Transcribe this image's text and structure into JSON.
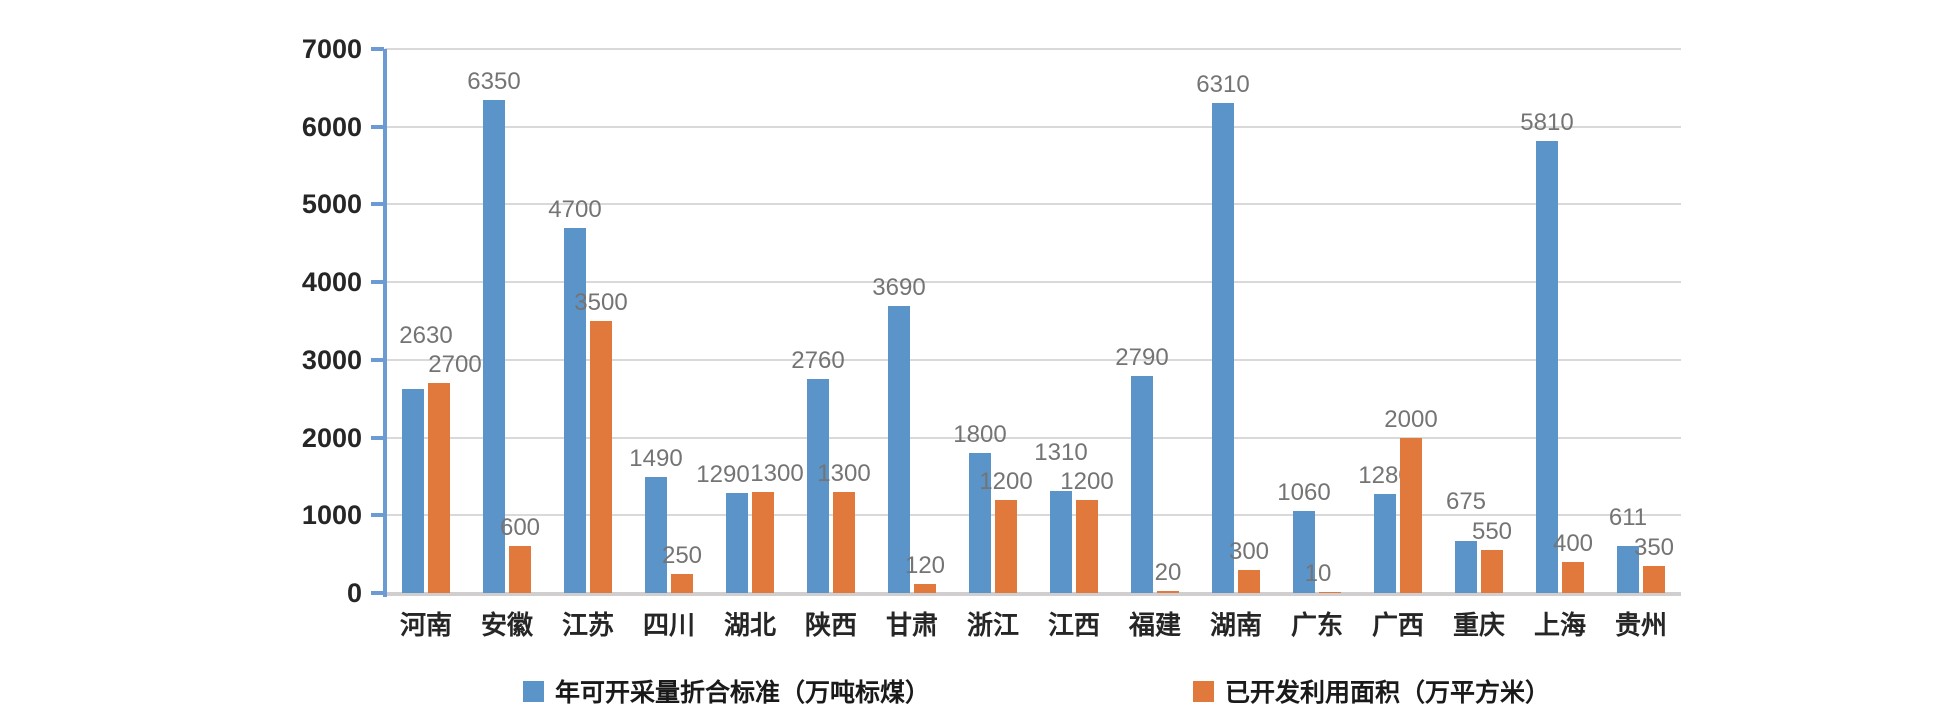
{
  "chart_data": {
    "type": "bar",
    "title": "",
    "xlabel": "",
    "ylabel": "",
    "categories": [
      "河南",
      "安徽",
      "江苏",
      "四川",
      "湖北",
      "陕西",
      "甘肃",
      "浙江",
      "江西",
      "福建",
      "湖南",
      "广东",
      "广西",
      "重庆",
      "上海",
      "贵州"
    ],
    "series": [
      {
        "name": "年可开采量折合标准（万吨标煤）",
        "color": "#5B94C8",
        "values": [
          2630,
          6350,
          4700,
          1490,
          1290,
          2760,
          3690,
          1800,
          1310,
          2790,
          6310,
          1060,
          1280,
          675,
          5810,
          611
        ],
        "label_dx": [
          13,
          0,
          0,
          0,
          -14,
          0,
          0,
          0,
          0,
          0,
          0,
          0,
          0,
          0,
          0,
          0
        ],
        "label_dy": [
          -35,
          0,
          0,
          0,
          0,
          0,
          0,
          0,
          -20,
          0,
          0,
          0,
          0,
          -21,
          0,
          -10
        ]
      },
      {
        "name": "已开发利用面积（万平方米）",
        "color": "#E2793C",
        "values": [
          2700,
          600,
          3500,
          250,
          1300,
          1300,
          120,
          1200,
          1200,
          20,
          300,
          10,
          2000,
          550,
          400,
          350
        ],
        "label_dx": [
          16,
          0,
          0,
          0,
          14,
          0,
          0,
          0,
          0,
          0,
          0,
          -12,
          0,
          0,
          0,
          0
        ],
        "label_dy": [
          0,
          0,
          0,
          0,
          0,
          0,
          0,
          0,
          0,
          0,
          0,
          0,
          0,
          0,
          0,
          0
        ]
      }
    ],
    "ylim": [
      0,
      7000
    ],
    "ytick_step": 1000,
    "yticks": [
      0,
      1000,
      2000,
      3000,
      4000,
      5000,
      6000,
      7000
    ],
    "grid": true,
    "legend_position": "bottom",
    "colors": {
      "gridline": "#D9D9D9",
      "baseline": "#D0CECE",
      "axis_line": "#6B9BD2",
      "tick_label": "#262626",
      "category_label": "#262626",
      "data_label": "#747474"
    }
  }
}
